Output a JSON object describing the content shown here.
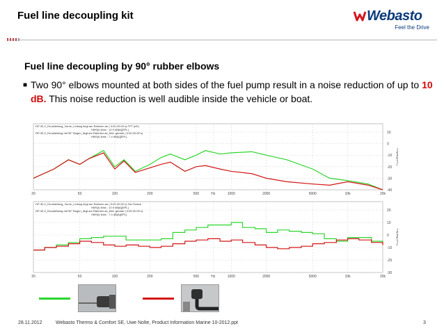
{
  "slide": {
    "title": "Fuel line decoupling kit",
    "subtitle": "Fuel line decoupling by 90° rubber elbows",
    "bullet_before": "Two 90° elbows mounted at both sides of the fuel pump result in a noise reduction of up to ",
    "bullet_highlight": "10 dB.",
    "bullet_after": " This noise reduction is well audible inside the vehicle or boat."
  },
  "logo": {
    "name": "Webasto",
    "tagline": "Feel the Drive"
  },
  "footer": {
    "date": "28.11.2012",
    "text": "Webasto Thermo & Comfort SE, Uwe Nolte, Product Information Marine 10-2012.ppt",
    "page": "3"
  },
  "colors": {
    "green_series": "#2bd62b",
    "red_series": "#d21414",
    "black_series": "#111111",
    "highlight": "#d20a0a",
    "logo_blue": "#0a3a7a",
    "logo_red": "#d3151d"
  },
  "chart_data": [
    {
      "type": "line",
      "panel": "upper",
      "legend_lines": [
        "DP-30-2_Druckleitung_Vorne_Leitung liegt am Rahmen an ( 0:00-20:00 s) FFT (eff.)",
        "HMS(t) links : 10.9 dB[A][SPL]",
        "DP-30-2_Druckleitung mit 90° Bogen_liegt am Rahmen an_Mot. gerade ( 0:00-20:00 s)",
        "HMS(t) links : 7.4 dB[A][SPL]"
      ],
      "x_scale": "log",
      "x_ticks": [
        "20",
        "50",
        "100",
        "200",
        "500",
        "Hz",
        "1000",
        "2000",
        "5000",
        "10k",
        "20k"
      ],
      "y_ticks": [
        "10",
        "0",
        "-10",
        "-20",
        "-30",
        "-40"
      ],
      "ylabel": "Pa[dB][SPL]",
      "ylim": [
        -40,
        10
      ],
      "series": [
        {
          "color": "green",
          "x": [
            20,
            30,
            40,
            50,
            60,
            80,
            100,
            120,
            150,
            200,
            250,
            300,
            400,
            500,
            600,
            800,
            1000,
            1500,
            2000,
            3000,
            5000,
            7000,
            10000,
            15000,
            20000
          ],
          "values": [
            -30,
            -22,
            -14,
            -18,
            -13,
            -6,
            -20,
            -14,
            -24,
            -18,
            -12,
            -9,
            -14,
            -10,
            -6,
            -9,
            -8,
            -7,
            -10,
            -14,
            -22,
            -30,
            -32,
            -35,
            -40
          ]
        },
        {
          "color": "red",
          "x": [
            20,
            30,
            40,
            50,
            60,
            80,
            100,
            120,
            150,
            200,
            250,
            300,
            400,
            500,
            600,
            800,
            1000,
            1500,
            2000,
            3000,
            5000,
            7000,
            10000,
            15000,
            20000
          ],
          "values": [
            -30,
            -22,
            -14,
            -18,
            -13,
            -8,
            -22,
            -15,
            -25,
            -21,
            -18,
            -16,
            -24,
            -20,
            -19,
            -22,
            -24,
            -26,
            -30,
            -33,
            -35,
            -36,
            -33,
            -36,
            -40
          ]
        }
      ]
    },
    {
      "type": "line",
      "panel": "lower",
      "legend_lines": [
        "DP-30-2_Druckleitung_Vorne_Leitung liegt am Rahmen an ( 0:00-20:00 s) 3rd Octave",
        "HMS(t) links : 10.9 dB[A][SPL]",
        "DP-30-2_Druckleitung mit 90° Bogen_liegt am Rahmen an_Mot. gerade ( 0:00-20:00 s)",
        "HMS(t) links : 7.4 dB[A][SPL]"
      ],
      "x_scale": "log",
      "x_ticks": [
        "20",
        "50",
        "100",
        "200",
        "500",
        "Hz",
        "1000",
        "2000",
        "5000",
        "10k",
        "20k"
      ],
      "y_ticks": [
        "20",
        "10",
        "0",
        "-10",
        "-20",
        "-30"
      ],
      "ylabel": "Pa[dB][SPL]",
      "ylim": [
        -30,
        20
      ],
      "series": [
        {
          "color": "green",
          "x": [
            20,
            25,
            31.5,
            40,
            50,
            63,
            80,
            100,
            125,
            160,
            200,
            250,
            315,
            400,
            500,
            630,
            800,
            1000,
            1250,
            1600,
            2000,
            2500,
            3150,
            4000,
            5000,
            6300,
            8000,
            10000,
            12500,
            16000,
            20000
          ],
          "values": [
            -12,
            -10,
            -8,
            -6,
            -3,
            -2,
            -1,
            -1,
            -4,
            -4,
            -4,
            -3,
            2,
            4,
            6,
            8,
            8,
            10,
            6,
            5,
            2,
            4,
            3,
            2,
            1,
            -3,
            -5,
            -2,
            -2,
            -5,
            -8
          ]
        },
        {
          "color": "red",
          "x": [
            20,
            25,
            31.5,
            40,
            50,
            63,
            80,
            100,
            125,
            160,
            200,
            250,
            315,
            400,
            500,
            630,
            800,
            1000,
            1250,
            1600,
            2000,
            2500,
            3150,
            4000,
            5000,
            6300,
            8000,
            10000,
            12500,
            16000,
            20000
          ],
          "values": [
            -12,
            -10,
            -9,
            -7,
            -5,
            -6,
            -8,
            -9,
            -8,
            -9,
            -10,
            -9,
            -7,
            -5,
            -4,
            -3,
            -5,
            -4,
            -6,
            -8,
            -10,
            -11,
            -10,
            -9,
            -7,
            -6,
            -4,
            -3,
            -4,
            -6,
            -8
          ]
        }
      ]
    }
  ]
}
